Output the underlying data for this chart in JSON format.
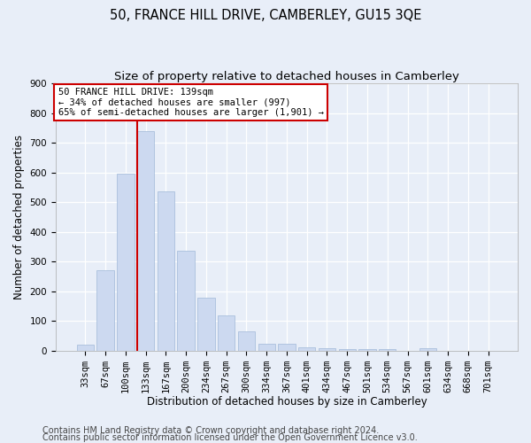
{
  "title": "50, FRANCE HILL DRIVE, CAMBERLEY, GU15 3QE",
  "subtitle": "Size of property relative to detached houses in Camberley",
  "xlabel": "Distribution of detached houses by size in Camberley",
  "ylabel": "Number of detached properties",
  "categories": [
    "33sqm",
    "67sqm",
    "100sqm",
    "133sqm",
    "167sqm",
    "200sqm",
    "234sqm",
    "267sqm",
    "300sqm",
    "334sqm",
    "367sqm",
    "401sqm",
    "434sqm",
    "467sqm",
    "501sqm",
    "534sqm",
    "567sqm",
    "601sqm",
    "634sqm",
    "668sqm",
    "701sqm"
  ],
  "values": [
    20,
    270,
    595,
    740,
    535,
    335,
    178,
    118,
    65,
    22,
    22,
    12,
    8,
    6,
    5,
    5,
    0,
    8,
    0,
    0,
    0
  ],
  "bar_color": "#ccd9f0",
  "bar_edge_color": "#a0b8d8",
  "vline_index": 3,
  "vline_color": "#cc0000",
  "annotation_text": "50 FRANCE HILL DRIVE: 139sqm\n← 34% of detached houses are smaller (997)\n65% of semi-detached houses are larger (1,901) →",
  "annotation_box_color": "#ffffff",
  "annotation_box_edge": "#cc0000",
  "ylim": [
    0,
    900
  ],
  "yticks": [
    0,
    100,
    200,
    300,
    400,
    500,
    600,
    700,
    800,
    900
  ],
  "footer1": "Contains HM Land Registry data © Crown copyright and database right 2024.",
  "footer2": "Contains public sector information licensed under the Open Government Licence v3.0.",
  "background_color": "#e8eef8",
  "grid_color": "#ffffff",
  "title_fontsize": 10.5,
  "subtitle_fontsize": 9.5,
  "axis_label_fontsize": 8.5,
  "tick_fontsize": 7.5,
  "footer_fontsize": 7.0,
  "annotation_fontsize": 7.5
}
